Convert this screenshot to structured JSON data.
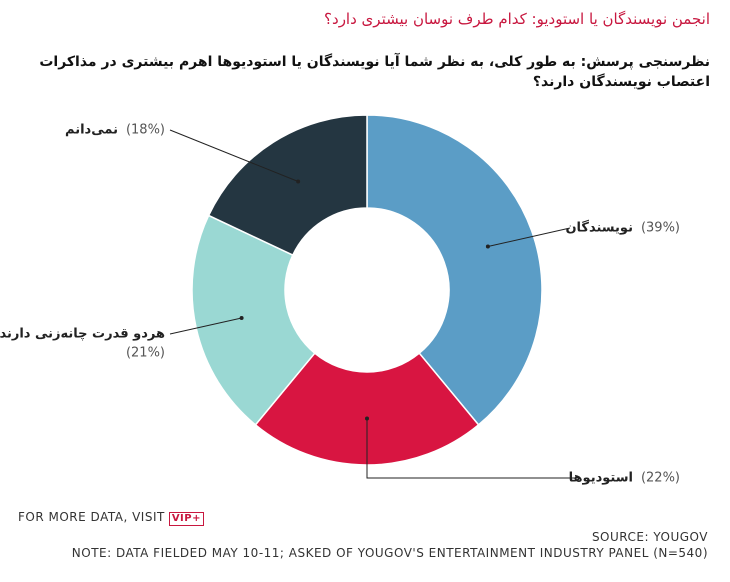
{
  "chart_data": {
    "type": "donut",
    "title": "انجمن نویسندگان یا استودیو: کدام طرف نوسان بیشتری دارد؟",
    "subtitle": "نظرسنجی پرسش: به طور کلی، به نظر شما آیا نویسندگان یا استودیوها اهرم بیشتری در مذاکرات اعتصاب نویسندگان دارند؟",
    "categories": [
      "نویسندگان",
      "استودیوها",
      "هردو قدرت چانه‌زنی دارند",
      "نمی‌دانم"
    ],
    "values": [
      39,
      22,
      21,
      18
    ],
    "value_labels": [
      "(39%)",
      "(22%)",
      "(21%)",
      "(18%)"
    ],
    "colors": [
      "#5b9dc6",
      "#d81541",
      "#9ad8d3",
      "#243641"
    ]
  },
  "footer": {
    "visit_text": "FOR MORE DATA, VISIT",
    "badge": "VIP+",
    "source": "SOURCE: YOUGOV",
    "note": "NOTE: DATA FIELDED MAY 10-11; ASKED OF YOUGOV'S ENTERTAINMENT INDUSTRY PANEL (N=540)"
  }
}
